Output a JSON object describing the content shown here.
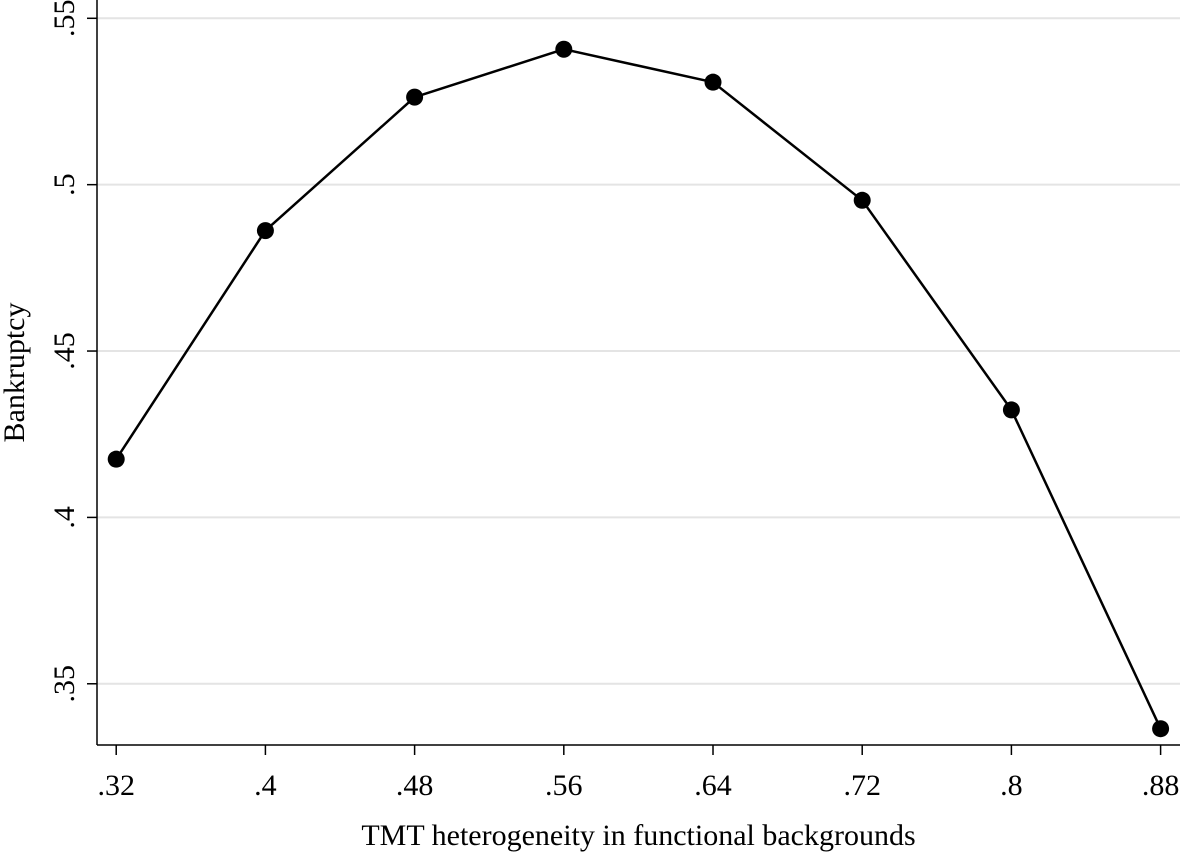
{
  "chart_data": {
    "type": "line",
    "title": "",
    "xlabel": "TMT heterogeneity in functional backgrounds",
    "ylabel": "Bankruptcy",
    "x": [
      0.32,
      0.4,
      0.48,
      0.56,
      0.64,
      0.72,
      0.8,
      0.88
    ],
    "series": [
      {
        "values": [
          0.4175,
          0.4862,
          0.5263,
          0.5407,
          0.5308,
          0.4953,
          0.4323,
          0.3365
        ]
      }
    ],
    "xticks": [
      {
        "value": 0.32,
        "label": ".32"
      },
      {
        "value": 0.4,
        "label": ".4"
      },
      {
        "value": 0.48,
        "label": ".48"
      },
      {
        "value": 0.56,
        "label": ".56"
      },
      {
        "value": 0.64,
        "label": ".64"
      },
      {
        "value": 0.72,
        "label": ".72"
      },
      {
        "value": 0.8,
        "label": ".8"
      },
      {
        "value": 0.88,
        "label": ".88"
      }
    ],
    "yticks": [
      {
        "value": 0.35,
        "label": ".35"
      },
      {
        "value": 0.4,
        "label": ".4"
      },
      {
        "value": 0.45,
        "label": ".45"
      },
      {
        "value": 0.5,
        "label": ".5"
      },
      {
        "value": 0.55,
        "label": ".55"
      }
    ],
    "xlim": [
      0.3097,
      0.8904
    ],
    "ylim": [
      0.3316,
      0.5555
    ],
    "grid": true,
    "legend": "none",
    "colors": {
      "line": "#000000",
      "marker": "#000000",
      "grid": "#e4e4e4",
      "axis": "#000000"
    }
  }
}
